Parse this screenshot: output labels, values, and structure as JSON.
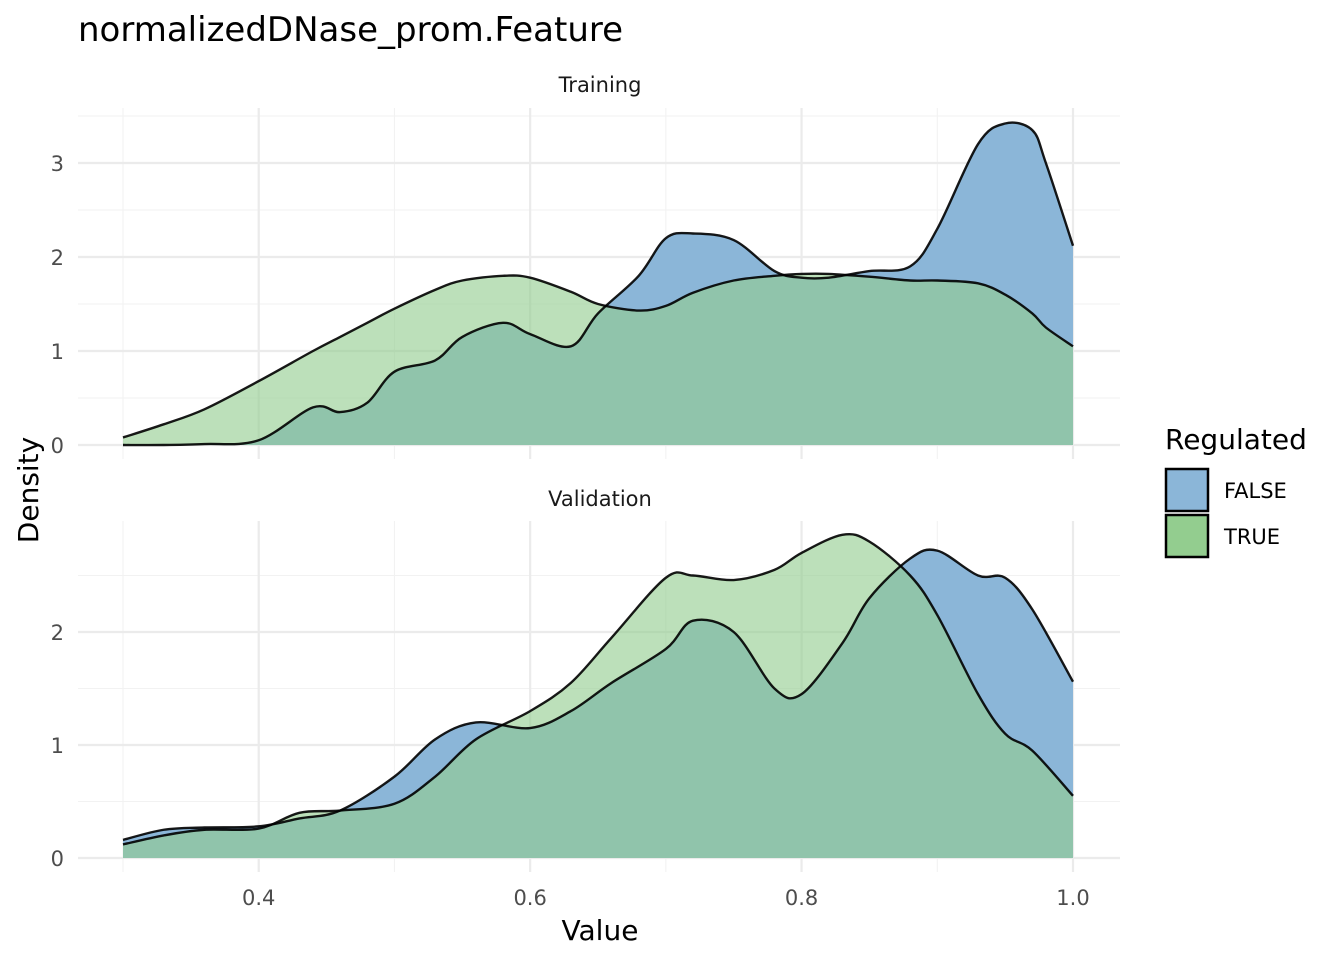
{
  "chart_data": {
    "type": "area",
    "subtype": "density",
    "title": "normalizedDNase_prom.Feature",
    "xlabel": "Value",
    "ylabel": "Density",
    "xlim": [
      0.3,
      1.0
    ],
    "x_ticks": [
      0.4,
      0.6,
      0.8,
      1.0
    ],
    "x_tick_labels": [
      "0.4",
      "0.6",
      "0.8",
      "1.0"
    ],
    "legend": {
      "title": "Regulated",
      "position": "right",
      "entries": [
        {
          "label": "FALSE",
          "color": "#8BB6D8"
        },
        {
          "label": "TRUE",
          "color": "#93CD8F"
        }
      ]
    },
    "overlap_color": "#5BAC80",
    "grid": true,
    "panels": [
      {
        "strip": "Training",
        "ylim": [
          0,
          3.5
        ],
        "y_ticks": [
          0,
          1,
          2,
          3
        ],
        "y_tick_labels": [
          "0",
          "1",
          "2",
          "3"
        ],
        "x": [
          0.3,
          0.33,
          0.36,
          0.4,
          0.44,
          0.46,
          0.48,
          0.5,
          0.53,
          0.55,
          0.58,
          0.6,
          0.63,
          0.65,
          0.68,
          0.7,
          0.72,
          0.75,
          0.78,
          0.8,
          0.82,
          0.85,
          0.88,
          0.9,
          0.93,
          0.95,
          0.97,
          0.98,
          1.0
        ],
        "series": [
          {
            "name": "FALSE",
            "values": [
              0.0,
              0.0,
              0.01,
              0.05,
              0.4,
              0.35,
              0.45,
              0.78,
              0.9,
              1.15,
              1.3,
              1.18,
              1.05,
              1.4,
              1.8,
              2.2,
              2.25,
              2.18,
              1.85,
              1.78,
              1.78,
              1.85,
              1.9,
              2.3,
              3.2,
              3.42,
              3.35,
              3.0,
              2.12
            ]
          },
          {
            "name": "TRUE",
            "values": [
              0.08,
              0.22,
              0.38,
              0.68,
              1.0,
              1.15,
              1.3,
              1.45,
              1.65,
              1.75,
              1.8,
              1.78,
              1.63,
              1.5,
              1.43,
              1.48,
              1.62,
              1.75,
              1.8,
              1.82,
              1.82,
              1.79,
              1.75,
              1.75,
              1.72,
              1.6,
              1.4,
              1.25,
              1.05
            ]
          }
        ]
      },
      {
        "strip": "Validation",
        "ylim": [
          0,
          2.9
        ],
        "y_ticks": [
          0,
          1,
          2
        ],
        "y_tick_labels": [
          "0",
          "1",
          "2"
        ],
        "x": [
          0.3,
          0.33,
          0.36,
          0.4,
          0.43,
          0.46,
          0.5,
          0.53,
          0.56,
          0.6,
          0.63,
          0.66,
          0.7,
          0.72,
          0.75,
          0.78,
          0.8,
          0.83,
          0.85,
          0.88,
          0.9,
          0.93,
          0.95,
          0.97,
          1.0
        ],
        "series": [
          {
            "name": "FALSE",
            "values": [
              0.16,
              0.25,
              0.27,
              0.28,
              0.35,
              0.42,
              0.72,
              1.05,
              1.2,
              1.15,
              1.3,
              1.55,
              1.85,
              2.1,
              2.0,
              1.5,
              1.45,
              1.9,
              2.3,
              2.65,
              2.72,
              2.5,
              2.48,
              2.2,
              1.56
            ]
          },
          {
            "name": "TRUE",
            "values": [
              0.12,
              0.2,
              0.25,
              0.26,
              0.4,
              0.42,
              0.48,
              0.72,
              1.05,
              1.3,
              1.55,
              1.95,
              2.48,
              2.5,
              2.46,
              2.55,
              2.7,
              2.86,
              2.8,
              2.5,
              2.15,
              1.45,
              1.1,
              0.95,
              0.55
            ]
          }
        ]
      }
    ]
  }
}
